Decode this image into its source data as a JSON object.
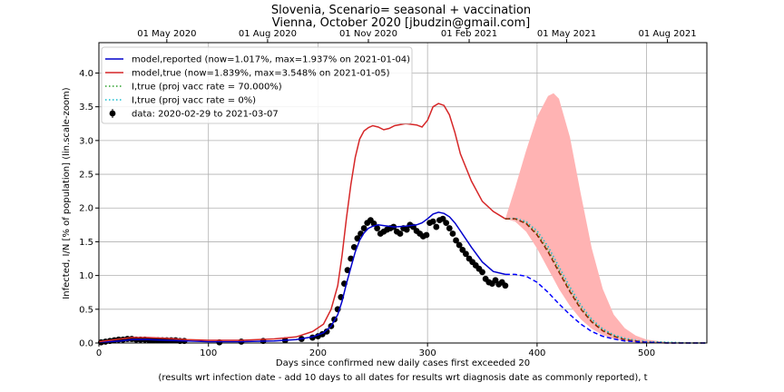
{
  "chart_data": {
    "type": "line",
    "title": "Slovenia, Scenario= seasonal + vaccination",
    "subtitle": "Vienna, October 2020 [jbudzin@gmail.com]",
    "xlabel": "Days since confirmed new daily cases first exceeded 20",
    "xlabel2": "(results wrt infection date - add 10 days to all dates for results wrt diagnosis date as commonly reported), t",
    "ylabel": "Infected, I/N [% of population] (lin.scale-zoom)",
    "xlim": [
      0,
      555
    ],
    "ylim": [
      0,
      4.45
    ],
    "xticks": [
      0,
      100,
      200,
      300,
      400,
      500
    ],
    "yticks": [
      0.0,
      0.5,
      1.0,
      1.5,
      2.0,
      2.5,
      3.0,
      3.5,
      4.0
    ],
    "top_axis_ticks": [
      {
        "day": 62,
        "label": "01 May 2020"
      },
      {
        "day": 154,
        "label": "01 Aug 2020"
      },
      {
        "day": 246,
        "label": "01 Nov 2020"
      },
      {
        "day": 338,
        "label": "01 Feb 2021"
      },
      {
        "day": 427,
        "label": "01 May 2021"
      },
      {
        "day": 519,
        "label": "01 Aug 2021"
      }
    ],
    "grid": true,
    "legend_position": "top-left",
    "series": [
      {
        "name": "model,reported (now=1.017%, max=1.937% on 2021-01-04)",
        "color": "#0000cc",
        "style": "solid",
        "x": [
          0,
          10,
          20,
          30,
          45,
          60,
          80,
          100,
          130,
          160,
          180,
          195,
          205,
          212,
          218,
          222,
          226,
          230,
          234,
          238,
          242,
          246,
          250,
          255,
          260,
          270,
          280,
          290,
          295,
          300,
          305,
          310,
          315,
          320,
          325,
          330,
          340,
          350,
          360,
          371
        ],
        "values": [
          0.01,
          0.02,
          0.03,
          0.05,
          0.05,
          0.04,
          0.03,
          0.02,
          0.02,
          0.03,
          0.05,
          0.09,
          0.15,
          0.25,
          0.42,
          0.62,
          0.88,
          1.12,
          1.35,
          1.52,
          1.63,
          1.7,
          1.73,
          1.75,
          1.74,
          1.72,
          1.73,
          1.75,
          1.78,
          1.84,
          1.91,
          1.937,
          1.92,
          1.87,
          1.78,
          1.66,
          1.42,
          1.2,
          1.06,
          1.017
        ]
      },
      {
        "name": "model,true (now=1.839%, max=3.548% on 2021-01-05)",
        "color": "#d62728",
        "style": "solid",
        "x": [
          0,
          10,
          20,
          30,
          45,
          60,
          80,
          100,
          130,
          160,
          180,
          195,
          205,
          212,
          218,
          222,
          226,
          230,
          234,
          238,
          242,
          246,
          250,
          255,
          260,
          265,
          270,
          280,
          290,
          295,
          300,
          305,
          310,
          315,
          320,
          325,
          330,
          340,
          350,
          360,
          371
        ],
        "values": [
          0.02,
          0.04,
          0.06,
          0.08,
          0.08,
          0.07,
          0.05,
          0.04,
          0.04,
          0.06,
          0.09,
          0.17,
          0.28,
          0.5,
          0.85,
          1.3,
          1.85,
          2.35,
          2.75,
          3.02,
          3.14,
          3.19,
          3.22,
          3.2,
          3.16,
          3.18,
          3.22,
          3.25,
          3.23,
          3.2,
          3.3,
          3.5,
          3.548,
          3.52,
          3.38,
          3.12,
          2.8,
          2.4,
          2.1,
          1.95,
          1.839
        ]
      },
      {
        "name": "I,true (proj vacc rate = 70.000%)",
        "color": "#2ca02c",
        "style": "dotted",
        "x": [
          371,
          380,
          390,
          400,
          410,
          420,
          430,
          440,
          450,
          460,
          470,
          480,
          490,
          500,
          520,
          540,
          555
        ],
        "values": [
          1.84,
          1.84,
          1.78,
          1.62,
          1.38,
          1.08,
          0.78,
          0.52,
          0.32,
          0.19,
          0.11,
          0.06,
          0.03,
          0.02,
          0.01,
          0.0,
          0.0
        ]
      },
      {
        "name": "I,true (proj vacc rate = 0%)",
        "color": "#17becf",
        "style": "dotted",
        "x": [
          371,
          380,
          390,
          400,
          410,
          420,
          430,
          440,
          450,
          460,
          470,
          480,
          490,
          500,
          520,
          540,
          555
        ],
        "values": [
          1.84,
          1.85,
          1.8,
          1.66,
          1.43,
          1.13,
          0.83,
          0.56,
          0.35,
          0.21,
          0.12,
          0.07,
          0.04,
          0.02,
          0.01,
          0.0,
          0.0
        ]
      },
      {
        "name": "",
        "color": "#8b2500",
        "style": "dashed",
        "x": [
          371,
          380,
          390,
          400,
          410,
          420,
          430,
          440,
          450,
          460,
          470,
          480,
          490,
          500,
          520,
          540,
          555
        ],
        "values": [
          1.839,
          1.84,
          1.77,
          1.6,
          1.35,
          1.05,
          0.76,
          0.5,
          0.31,
          0.18,
          0.1,
          0.05,
          0.03,
          0.01,
          0.0,
          0.0,
          0.0
        ]
      },
      {
        "name": "",
        "color": "#0000ff",
        "style": "dashed",
        "x": [
          371,
          380,
          390,
          400,
          410,
          420,
          430,
          440,
          450,
          460,
          470,
          480,
          490,
          500,
          520,
          540,
          555
        ],
        "values": [
          1.017,
          1.017,
          0.99,
          0.9,
          0.75,
          0.58,
          0.42,
          0.28,
          0.17,
          0.1,
          0.06,
          0.03,
          0.02,
          0.01,
          0.0,
          0.0,
          0.0
        ]
      }
    ],
    "band": {
      "color": "#ffb3b3",
      "x": [
        371,
        380,
        390,
        400,
        410,
        415,
        420,
        430,
        440,
        450,
        460,
        470,
        480,
        490,
        500,
        520,
        540,
        555
      ],
      "upper": [
        1.84,
        2.3,
        2.85,
        3.35,
        3.66,
        3.7,
        3.62,
        3.05,
        2.2,
        1.4,
        0.8,
        0.42,
        0.22,
        0.11,
        0.05,
        0.01,
        0.0,
        0.0
      ],
      "lower": [
        1.84,
        1.8,
        1.65,
        1.4,
        1.1,
        0.95,
        0.8,
        0.55,
        0.35,
        0.21,
        0.12,
        0.06,
        0.03,
        0.01,
        0.0,
        0.0,
        0.0,
        0.0
      ]
    },
    "data_points": {
      "name": "data: 2020-02-29 to 2021-03-07",
      "color": "#000000",
      "x": [
        2,
        6,
        10,
        14,
        18,
        22,
        26,
        30,
        34,
        38,
        42,
        46,
        50,
        54,
        58,
        62,
        66,
        70,
        74,
        78,
        110,
        130,
        150,
        170,
        185,
        195,
        200,
        204,
        208,
        212,
        215,
        218,
        221,
        224,
        227,
        230,
        233,
        236,
        239,
        242,
        245,
        248,
        251,
        254,
        257,
        260,
        263,
        266,
        269,
        272,
        275,
        278,
        281,
        284,
        287,
        290,
        293,
        296,
        299,
        302,
        305,
        308,
        311,
        314,
        317,
        320,
        323,
        326,
        329,
        332,
        335,
        338,
        341,
        344,
        347,
        350,
        353,
        356,
        359,
        362,
        365,
        368,
        371
      ],
      "values": [
        0.01,
        0.02,
        0.03,
        0.04,
        0.05,
        0.05,
        0.06,
        0.06,
        0.05,
        0.05,
        0.05,
        0.04,
        0.04,
        0.04,
        0.04,
        0.04,
        0.04,
        0.04,
        0.03,
        0.03,
        0.01,
        0.02,
        0.03,
        0.04,
        0.06,
        0.08,
        0.1,
        0.13,
        0.17,
        0.25,
        0.35,
        0.5,
        0.68,
        0.88,
        1.08,
        1.25,
        1.42,
        1.55,
        1.62,
        1.7,
        1.78,
        1.82,
        1.77,
        1.7,
        1.62,
        1.65,
        1.68,
        1.7,
        1.72,
        1.65,
        1.62,
        1.7,
        1.68,
        1.75,
        1.72,
        1.66,
        1.62,
        1.58,
        1.6,
        1.78,
        1.8,
        1.72,
        1.82,
        1.84,
        1.78,
        1.7,
        1.62,
        1.52,
        1.45,
        1.38,
        1.32,
        1.25,
        1.2,
        1.15,
        1.1,
        1.05,
        0.95,
        0.9,
        0.88,
        0.93,
        0.87,
        0.9,
        0.85
      ]
    },
    "legend": [
      {
        "label": "model,reported (now=1.017%, max=1.937% on 2021-01-04)",
        "color": "#0000cc",
        "style": "solid"
      },
      {
        "label": "model,true (now=1.839%, max=3.548% on 2021-01-05)",
        "color": "#d62728",
        "style": "solid"
      },
      {
        "label": "I,true (proj vacc rate = 70.000%)",
        "color": "#2ca02c",
        "style": "dotted"
      },
      {
        "label": "I,true (proj vacc rate = 0%)",
        "color": "#17becf",
        "style": "dotted"
      },
      {
        "label": "data: 2020-02-29 to 2021-03-07",
        "color": "#000000",
        "style": "marker"
      }
    ]
  }
}
